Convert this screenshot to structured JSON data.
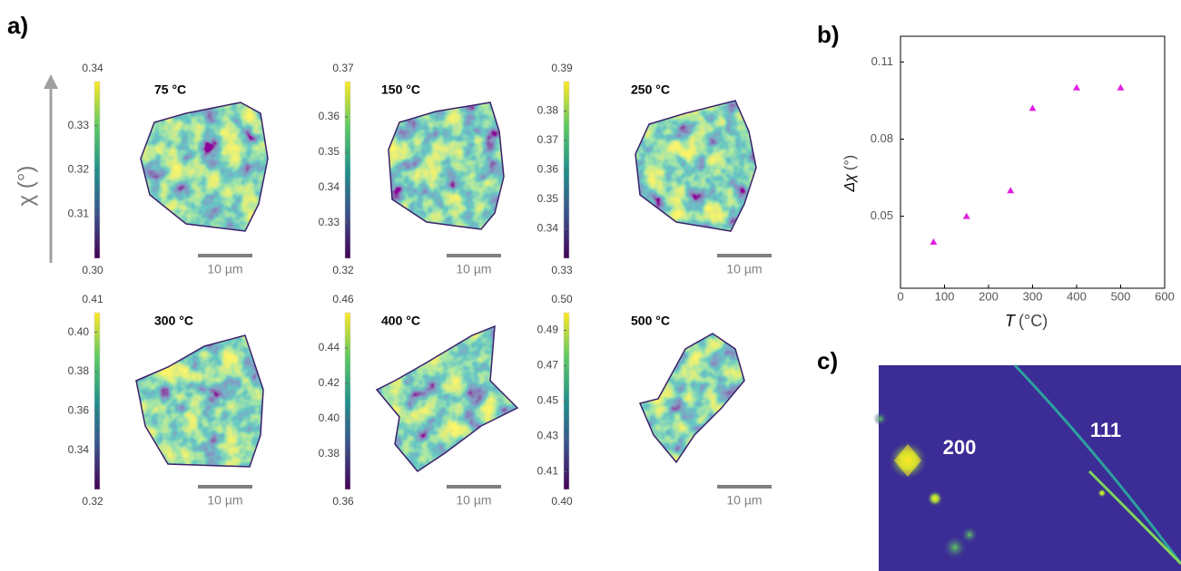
{
  "panel_labels": {
    "a": "a)",
    "b": "b)",
    "c": "c)"
  },
  "maps": {
    "axis_label": "χ (°)",
    "scale_bar": "10 µm",
    "items": [
      {
        "temperature": "75 °C",
        "cbar_max": 0.34,
        "cbar_min": {
          "value": 0.3,
          "label": "0.30"
        },
        "cbar_ticks": [
          0.33,
          0.32,
          0.31
        ]
      },
      {
        "temperature": "150 °C",
        "cbar_max": 0.37,
        "cbar_min": 0.32,
        "cbar_ticks": [
          0.36,
          0.35,
          0.34,
          0.33
        ]
      },
      {
        "temperature": "250 °C",
        "cbar_max": 0.39,
        "cbar_min": 0.33,
        "cbar_ticks": [
          0.38,
          0.37,
          0.36,
          0.35,
          0.34
        ]
      },
      {
        "temperature": "300 °C",
        "cbar_max": 0.41,
        "cbar_min": 0.32,
        "cbar_ticks": [
          {
            "value": 0.4,
            "label": "0.40"
          },
          0.38,
          0.36,
          0.34
        ]
      },
      {
        "temperature": "400 °C",
        "cbar_max": 0.46,
        "cbar_min": 0.36,
        "cbar_ticks": [
          0.44,
          0.42,
          {
            "value": 0.4,
            "label": "0.40"
          },
          0.38
        ]
      },
      {
        "temperature": "500 °C",
        "cbar_max": {
          "value": 0.5,
          "label": "0.50"
        },
        "cbar_min": {
          "value": 0.4,
          "label": "0.40"
        },
        "cbar_ticks": [
          0.49,
          0.47,
          0.45,
          0.43,
          0.41
        ]
      }
    ]
  },
  "chart_data": {
    "type": "scatter",
    "xlabel_symbol": "T",
    "xlabel_unit": "(°C)",
    "ylabel_symbol": "Δχ",
    "ylabel_unit": "(°)",
    "x": [
      75,
      150,
      250,
      300,
      400,
      500
    ],
    "values": [
      0.04,
      0.05,
      0.06,
      0.092,
      0.1,
      0.1
    ],
    "color": "#e020e0",
    "xlim": [
      0,
      600
    ],
    "xticks": [
      0,
      100,
      200,
      300,
      400,
      500,
      600
    ],
    "ylim": [
      0.022,
      0.12
    ],
    "yticks": [
      0.05,
      0.08,
      0.11
    ]
  },
  "diffraction": {
    "labels": [
      "200",
      "111"
    ]
  }
}
